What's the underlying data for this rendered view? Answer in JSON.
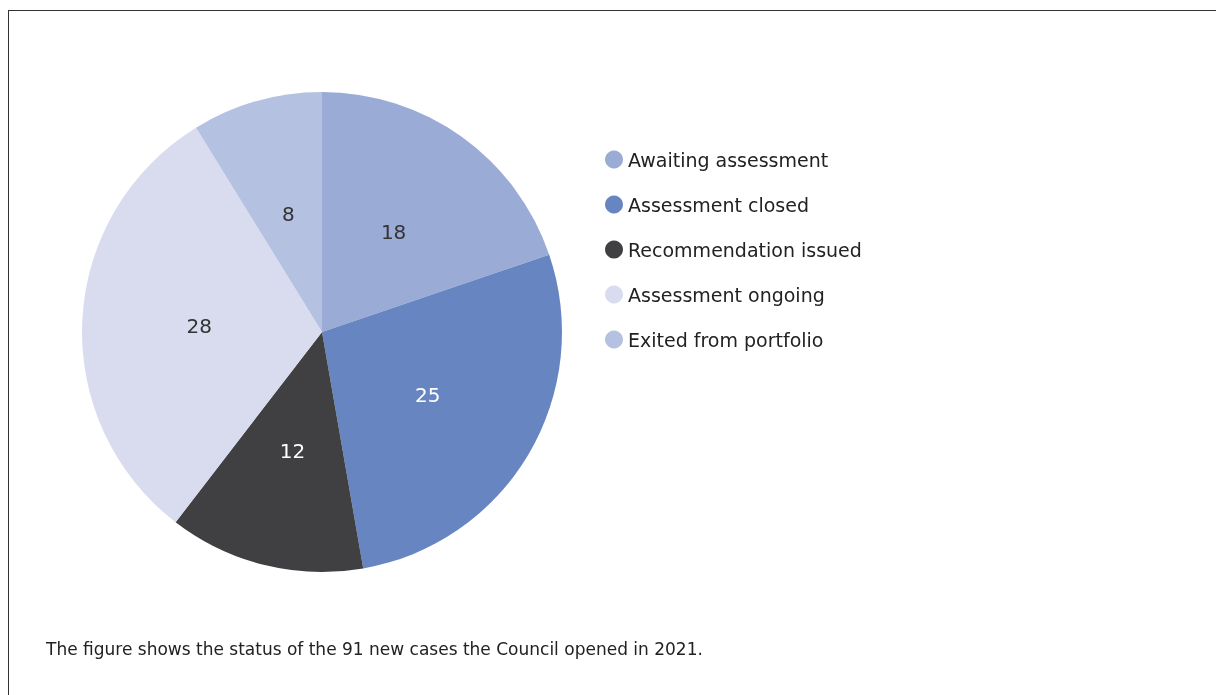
{
  "chart_data": {
    "type": "pie",
    "categories": [
      "Awaiting assessment",
      "Assessment closed",
      "Recommendation issued",
      "Assessment ongoing",
      "Exited from portfolio"
    ],
    "values": [
      18,
      25,
      12,
      28,
      8
    ],
    "colors": [
      "#9aabd5",
      "#6786c1",
      "#404042",
      "#d8dcee",
      "#b5c1e1"
    ],
    "data_labels": true,
    "legend": "right",
    "annotations": [
      "The figure shows the status of the 91 new cases the Council opened in 2021."
    ]
  }
}
